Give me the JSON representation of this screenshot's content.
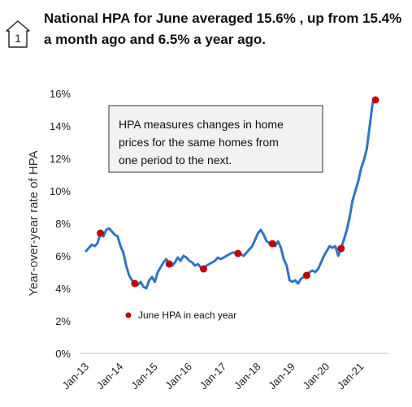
{
  "badge": {
    "label": "1",
    "icon": "house-outline-icon"
  },
  "header": {
    "title": "National HPA for June averaged 15.6% , up from 15.4% a month ago and 6.5% a year ago."
  },
  "chart_data": {
    "type": "line",
    "title": "National HPA for June averaged 15.6% , up from 15.4% a month ago and 6.5% a year ago.",
    "ylabel": "Year-over-year rate of HPA",
    "xlabel": "",
    "ylim": [
      0,
      16
    ],
    "ytick_labels": [
      "0%",
      "2%",
      "4%",
      "6%",
      "8%",
      "10%",
      "12%",
      "14%",
      "16%"
    ],
    "xtick_labels": [
      "Jan-13",
      "Jan-14",
      "Jan-15",
      "Jan-16",
      "Jan-17",
      "Jan-18",
      "Jan-19",
      "Jan-20",
      "Jan-21"
    ],
    "line_color": "#2e75c8",
    "marker_color": "#c00000",
    "annotation": "HPA measures changes in home prices for the same homes from one period to the next.",
    "legend_label": "June HPA in each year",
    "series": [
      {
        "values": [
          {
            "x": "Jan-13",
            "y": 6.3
          },
          {
            "x": "Feb-13",
            "y": 6.5
          },
          {
            "x": "Mar-13",
            "y": 6.7
          },
          {
            "x": "Apr-13",
            "y": 6.6
          },
          {
            "x": "May-13",
            "y": 6.8
          },
          {
            "x": "Jun-13",
            "y": 7.4
          },
          {
            "x": "Jul-13",
            "y": 7.2
          },
          {
            "x": "Aug-13",
            "y": 7.6
          },
          {
            "x": "Sep-13",
            "y": 7.7
          },
          {
            "x": "Oct-13",
            "y": 7.5
          },
          {
            "x": "Nov-13",
            "y": 7.3
          },
          {
            "x": "Dec-13",
            "y": 7.2
          },
          {
            "x": "Jan-14",
            "y": 6.6
          },
          {
            "x": "Feb-14",
            "y": 6.2
          },
          {
            "x": "Mar-14",
            "y": 5.4
          },
          {
            "x": "Apr-14",
            "y": 4.8
          },
          {
            "x": "May-14",
            "y": 4.5
          },
          {
            "x": "Jun-14",
            "y": 4.3
          },
          {
            "x": "Jul-14",
            "y": 4.2
          },
          {
            "x": "Aug-14",
            "y": 4.4
          },
          {
            "x": "Sep-14",
            "y": 4.1
          },
          {
            "x": "Oct-14",
            "y": 4.0
          },
          {
            "x": "Nov-14",
            "y": 4.5
          },
          {
            "x": "Dec-14",
            "y": 4.7
          },
          {
            "x": "Jan-15",
            "y": 4.4
          },
          {
            "x": "Feb-15",
            "y": 5.0
          },
          {
            "x": "Mar-15",
            "y": 5.3
          },
          {
            "x": "Apr-15",
            "y": 5.6
          },
          {
            "x": "May-15",
            "y": 5.8
          },
          {
            "x": "Jun-15",
            "y": 5.5
          },
          {
            "x": "Jul-15",
            "y": 5.4
          },
          {
            "x": "Aug-15",
            "y": 5.6
          },
          {
            "x": "Sep-15",
            "y": 5.9
          },
          {
            "x": "Oct-15",
            "y": 5.7
          },
          {
            "x": "Nov-15",
            "y": 6.0
          },
          {
            "x": "Dec-15",
            "y": 5.9
          },
          {
            "x": "Jan-16",
            "y": 5.7
          },
          {
            "x": "Feb-16",
            "y": 5.6
          },
          {
            "x": "Mar-16",
            "y": 5.4
          },
          {
            "x": "Apr-16",
            "y": 5.5
          },
          {
            "x": "May-16",
            "y": 5.3
          },
          {
            "x": "Jun-16",
            "y": 5.2
          },
          {
            "x": "Jul-16",
            "y": 5.4
          },
          {
            "x": "Aug-16",
            "y": 5.5
          },
          {
            "x": "Sep-16",
            "y": 5.6
          },
          {
            "x": "Oct-16",
            "y": 5.7
          },
          {
            "x": "Nov-16",
            "y": 5.9
          },
          {
            "x": "Dec-16",
            "y": 5.8
          },
          {
            "x": "Jan-17",
            "y": 5.9
          },
          {
            "x": "Feb-17",
            "y": 6.0
          },
          {
            "x": "Mar-17",
            "y": 6.1
          },
          {
            "x": "Apr-17",
            "y": 6.2
          },
          {
            "x": "May-17",
            "y": 6.2
          },
          {
            "x": "Jun-17",
            "y": 6.15
          },
          {
            "x": "Jul-17",
            "y": 6.1
          },
          {
            "x": "Aug-17",
            "y": 6.0
          },
          {
            "x": "Sep-17",
            "y": 6.2
          },
          {
            "x": "Oct-17",
            "y": 6.4
          },
          {
            "x": "Nov-17",
            "y": 6.6
          },
          {
            "x": "Dec-17",
            "y": 7.0
          },
          {
            "x": "Jan-18",
            "y": 7.4
          },
          {
            "x": "Feb-18",
            "y": 7.6
          },
          {
            "x": "Mar-18",
            "y": 7.3
          },
          {
            "x": "Apr-18",
            "y": 6.9
          },
          {
            "x": "May-18",
            "y": 6.8
          },
          {
            "x": "Jun-18",
            "y": 6.75
          },
          {
            "x": "Jul-18",
            "y": 6.6
          },
          {
            "x": "Aug-18",
            "y": 6.9
          },
          {
            "x": "Sep-18",
            "y": 6.5
          },
          {
            "x": "Oct-18",
            "y": 5.8
          },
          {
            "x": "Nov-18",
            "y": 5.4
          },
          {
            "x": "Dec-18",
            "y": 4.5
          },
          {
            "x": "Jan-19",
            "y": 4.4
          },
          {
            "x": "Feb-19",
            "y": 4.5
          },
          {
            "x": "Mar-19",
            "y": 4.3
          },
          {
            "x": "Apr-19",
            "y": 4.6
          },
          {
            "x": "May-19",
            "y": 4.7
          },
          {
            "x": "Jun-19",
            "y": 4.8
          },
          {
            "x": "Jul-19",
            "y": 5.0
          },
          {
            "x": "Aug-19",
            "y": 5.1
          },
          {
            "x": "Sep-19",
            "y": 5.0
          },
          {
            "x": "Oct-19",
            "y": 5.2
          },
          {
            "x": "Nov-19",
            "y": 5.6
          },
          {
            "x": "Dec-19",
            "y": 6.0
          },
          {
            "x": "Jan-20",
            "y": 6.3
          },
          {
            "x": "Feb-20",
            "y": 6.6
          },
          {
            "x": "Mar-20",
            "y": 6.5
          },
          {
            "x": "Apr-20",
            "y": 6.6
          },
          {
            "x": "May-20",
            "y": 6.0
          },
          {
            "x": "Jun-20",
            "y": 6.45
          },
          {
            "x": "Jul-20",
            "y": 7.0
          },
          {
            "x": "Aug-20",
            "y": 7.6
          },
          {
            "x": "Sep-20",
            "y": 8.4
          },
          {
            "x": "Oct-20",
            "y": 9.4
          },
          {
            "x": "Nov-20",
            "y": 10.0
          },
          {
            "x": "Dec-20",
            "y": 10.6
          },
          {
            "x": "Jan-21",
            "y": 11.4
          },
          {
            "x": "Feb-21",
            "y": 11.9
          },
          {
            "x": "Mar-21",
            "y": 12.6
          },
          {
            "x": "Apr-21",
            "y": 14.0
          },
          {
            "x": "May-21",
            "y": 15.4
          },
          {
            "x": "Jun-21",
            "y": 15.6
          }
        ]
      }
    ],
    "june_markers": [
      {
        "x": "Jun-13",
        "y": 7.4
      },
      {
        "x": "Jun-14",
        "y": 4.3
      },
      {
        "x": "Jun-15",
        "y": 5.5
      },
      {
        "x": "Jun-16",
        "y": 5.2
      },
      {
        "x": "Jun-17",
        "y": 6.15
      },
      {
        "x": "Jun-18",
        "y": 6.75
      },
      {
        "x": "Jun-19",
        "y": 4.8
      },
      {
        "x": "Jun-20",
        "y": 6.45
      },
      {
        "x": "Jun-21",
        "y": 15.6
      }
    ]
  }
}
